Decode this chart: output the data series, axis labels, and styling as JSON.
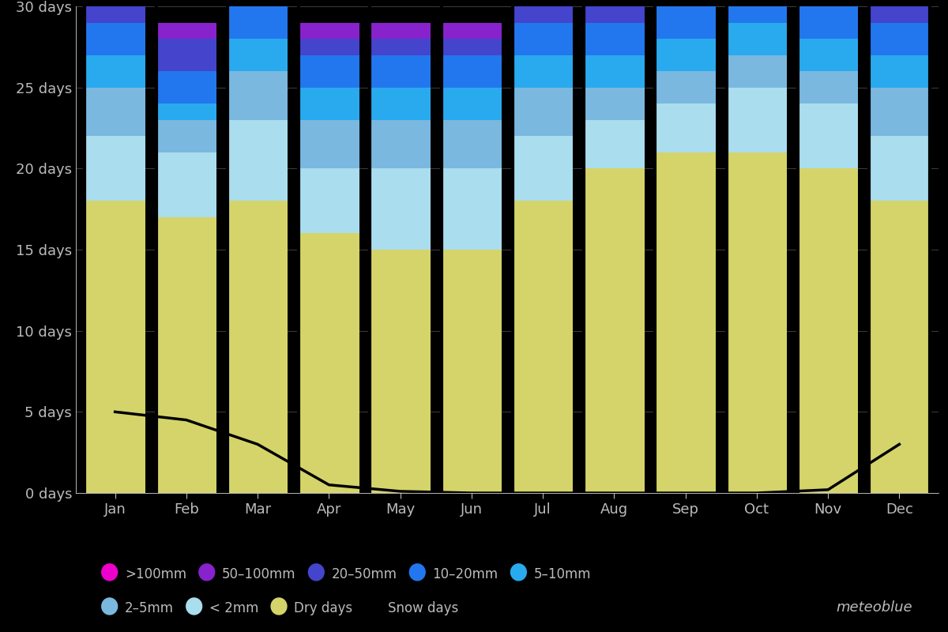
{
  "months": [
    "Jan",
    "Feb",
    "Mar",
    "Apr",
    "May",
    "Jun",
    "Jul",
    "Aug",
    "Sep",
    "Oct",
    "Nov",
    "Dec"
  ],
  "background_color": "#000000",
  "bar_width": 0.85,
  "layers": {
    "dry": {
      "label": "Dry days",
      "color": "#d4d46a",
      "values": [
        18,
        17,
        18,
        16,
        15,
        15,
        18,
        20,
        21,
        21,
        20,
        18
      ]
    },
    "lt2": {
      "label": "< 2mm",
      "color": "#aaddee",
      "values": [
        4,
        4,
        5,
        4,
        5,
        5,
        4,
        3,
        3,
        4,
        4,
        4
      ]
    },
    "r25": {
      "label": "2–5mm",
      "color": "#7ab8e0",
      "values": [
        3,
        2,
        3,
        3,
        3,
        3,
        3,
        2,
        2,
        2,
        2,
        3
      ]
    },
    "r510": {
      "label": "5–10mm",
      "color": "#29aaee",
      "values": [
        2,
        1,
        2,
        2,
        2,
        2,
        2,
        2,
        2,
        2,
        2,
        2
      ]
    },
    "r1020": {
      "label": "10–20mm",
      "color": "#2277ee",
      "values": [
        2,
        2,
        2,
        2,
        2,
        2,
        2,
        2,
        2,
        2,
        2,
        2
      ]
    },
    "r2050": {
      "label": "20–50mm",
      "color": "#4444cc",
      "values": [
        1,
        2,
        1,
        1,
        1,
        1,
        1,
        1,
        0,
        1,
        1,
        1
      ]
    },
    "r50100": {
      "label": "50–100mm",
      "color": "#8822cc",
      "values": [
        0,
        1,
        0,
        1,
        1,
        1,
        0,
        0,
        0,
        0,
        0,
        1
      ]
    },
    "r100": {
      "label": ">100mm",
      "color": "#ee00cc",
      "values": [
        0,
        0,
        0,
        0,
        0,
        0,
        0,
        0,
        0,
        0,
        0,
        0
      ]
    }
  },
  "snow_days": [
    5,
    4.5,
    3,
    0.5,
    0.1,
    0,
    0,
    0,
    0,
    0,
    0.2,
    3
  ],
  "ylim": [
    0,
    30
  ],
  "yticks": [
    0,
    5,
    10,
    15,
    20,
    25,
    30
  ],
  "ytick_labels": [
    "0 days",
    "5 days",
    "10 days",
    "15 days",
    "20 days",
    "25 days",
    "30 days"
  ],
  "grid_color": "#777777",
  "text_color": "#bbbbbb",
  "legend_items": [
    {
      ">100mm": "#ee00cc"
    },
    {
      "50–100mm": "#8822cc"
    },
    {
      "20–50mm": "#4444cc"
    },
    {
      "10–20mm": "#2277ee"
    },
    {
      "5–10mm": "#29aaee"
    },
    {
      "2–5mm": "#7ab8e0"
    },
    {
      "< 2mm": "#aaddee"
    },
    {
      "Dry days": "#d4d46a"
    },
    {
      "Snow days": null
    }
  ],
  "watermark": "meteoblue",
  "axis_fontsize": 13,
  "legend_fontsize": 12
}
